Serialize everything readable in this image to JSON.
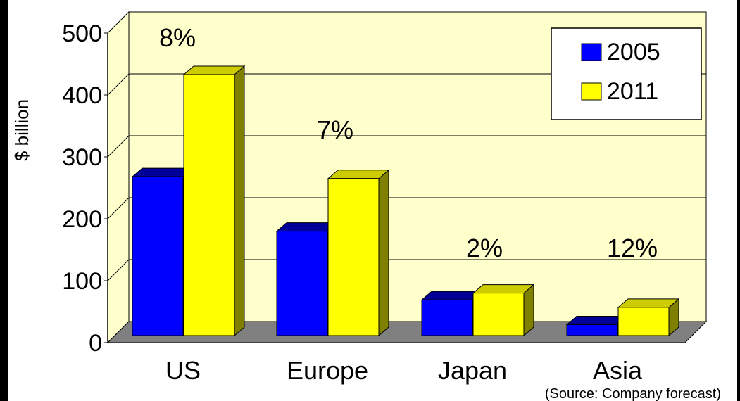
{
  "colors": {
    "background": "#000000",
    "card": "#ffffff",
    "plot_wall": "#ffffcc",
    "plot_floor": "#808080",
    "gridline": "#000000",
    "series_2005": "#0000ff",
    "series_2005_top": "#000099",
    "series_2005_side": "#000080",
    "series_2011": "#ffff00",
    "series_2011_top": "#cccc00",
    "series_2011_side": "#808000"
  },
  "chart_data": {
    "type": "bar",
    "title": "",
    "xlabel": "",
    "ylabel": "$ billion",
    "ylim": [
      0,
      500
    ],
    "yticks": [
      0,
      100,
      200,
      300,
      400,
      500
    ],
    "grid": true,
    "legend_position": "top-right",
    "categories": [
      "US",
      "Europe",
      "Japan",
      "Asia"
    ],
    "series": [
      {
        "name": "2005",
        "values": [
          268,
          180,
          69,
          29
        ]
      },
      {
        "name": "2011",
        "values": [
          433,
          265,
          80,
          57
        ]
      }
    ],
    "annotations": [
      "8%",
      "7%",
      "2%",
      "12%"
    ],
    "source_note": "(Source:  Company forecast)"
  }
}
